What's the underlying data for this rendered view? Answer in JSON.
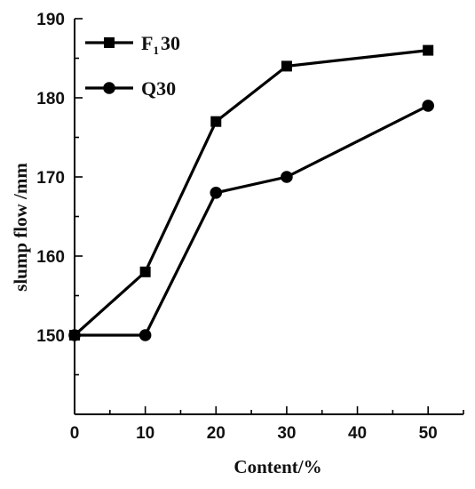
{
  "chart_data": {
    "type": "line",
    "title": "",
    "xlabel": "Content/%",
    "ylabel": "slump flow /mm",
    "xlim": [
      0,
      55
    ],
    "ylim": [
      140,
      190
    ],
    "xticks": [
      0,
      10,
      20,
      30,
      40,
      50
    ],
    "yticks": [
      150,
      160,
      170,
      180,
      190
    ],
    "grid": false,
    "legend_position": "top-left",
    "series": [
      {
        "name": "F130",
        "name_main": "F",
        "name_sub": "1",
        "name_rest": "30",
        "marker": "square",
        "color": "#000000",
        "x": [
          0,
          10,
          20,
          30,
          50
        ],
        "y": [
          150,
          158,
          177,
          184,
          186
        ]
      },
      {
        "name": "Q30",
        "marker": "circle",
        "color": "#000000",
        "x": [
          0,
          10,
          20,
          30,
          50
        ],
        "y": [
          150,
          150,
          168,
          170,
          179
        ]
      }
    ]
  }
}
